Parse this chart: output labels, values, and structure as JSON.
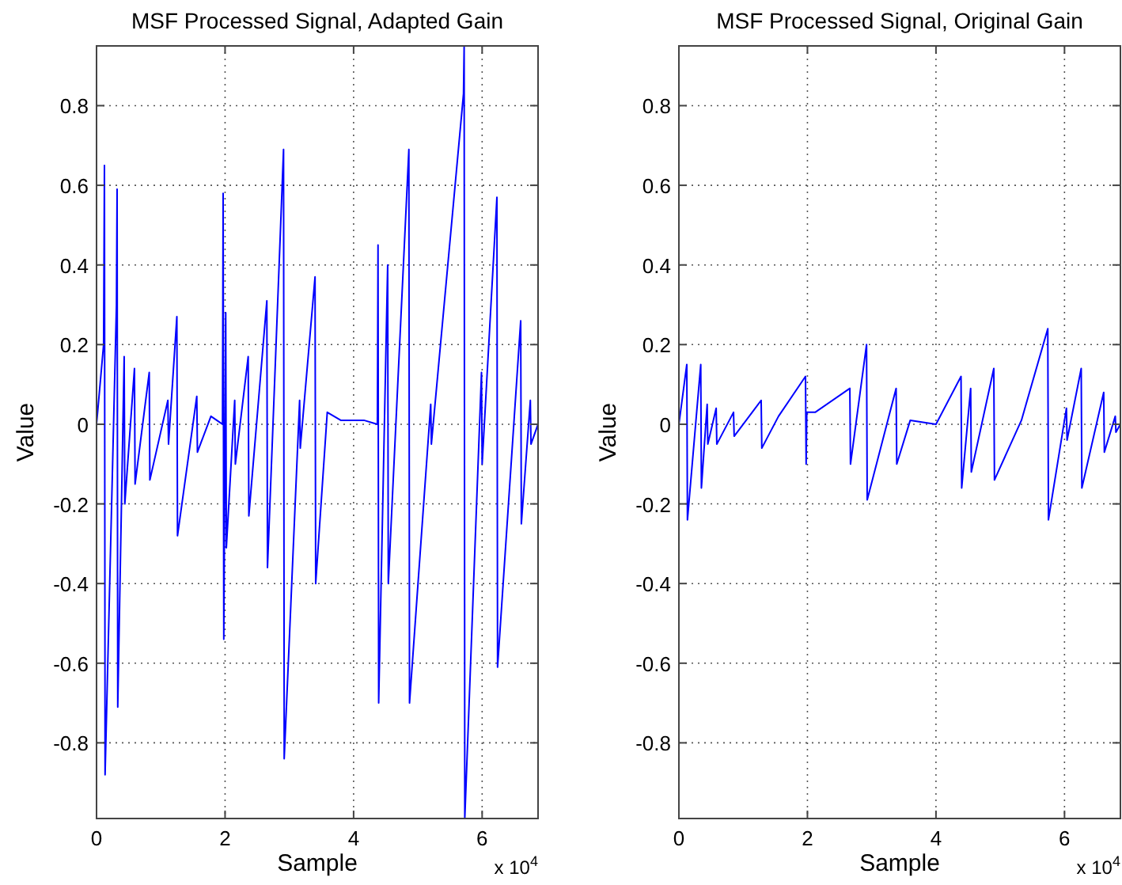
{
  "chart_data": [
    {
      "type": "line",
      "title": "MSF Processed Signal, Adapted Gain",
      "xlabel": "Sample",
      "ylabel": "Value",
      "annotations": [
        "x 10$^{4}$"
      ],
      "xlim": [
        0,
        6.87
      ],
      "ylim": [
        -0.99,
        0.95
      ],
      "xticks": [
        0,
        2,
        4,
        6
      ],
      "yticks": [
        -0.8,
        -0.6,
        -0.4,
        -0.2,
        0,
        0.2,
        0.4,
        0.6,
        0.8
      ],
      "grid": true,
      "marker": "none",
      "line_style": "solid",
      "series": [
        {
          "color": "#0000ff",
          "x": [
            0,
            0.11,
            0.123,
            0.133,
            0.31,
            0.32,
            0.33,
            0.43,
            0.44,
            0.59,
            0.6,
            0.82,
            0.83,
            1.11,
            1.12,
            1.25,
            1.26,
            1.56,
            1.57,
            1.78,
            1.96,
            1.97,
            1.98,
            2.01,
            2.02,
            2.15,
            2.16,
            2.36,
            2.37,
            2.65,
            2.66,
            2.91,
            2.92,
            3.16,
            3.17,
            3.4,
            3.41,
            3.59,
            3.8,
            4.16,
            4.37,
            4.38,
            4.39,
            4.53,
            4.54,
            4.86,
            4.87,
            5.2,
            5.21,
            5.71,
            5.72,
            5.73,
            5.99,
            6,
            6.23,
            6.24,
            6.6,
            6.61,
            6.75,
            6.76,
            6.87
          ],
          "values": [
            0,
            0.2,
            0.65,
            -0.88,
            0.3,
            0.59,
            -0.71,
            0.17,
            -0.2,
            0.14,
            -0.15,
            0.13,
            -0.14,
            0.06,
            -0.05,
            0.27,
            -0.28,
            0.07,
            -0.07,
            0.02,
            0,
            0.58,
            -0.54,
            0.28,
            -0.31,
            0.06,
            -0.1,
            0.17,
            -0.23,
            0.31,
            -0.36,
            0.69,
            -0.84,
            0.06,
            -0.06,
            0.37,
            -0.4,
            0.03,
            0.01,
            0.01,
            0,
            0.45,
            -0.7,
            0.4,
            -0.4,
            0.69,
            -0.7,
            0.05,
            -0.05,
            0.83,
            0.95,
            -0.99,
            0.13,
            -0.1,
            0.57,
            -0.61,
            0.26,
            -0.25,
            0.06,
            -0.05,
            0
          ]
        }
      ]
    },
    {
      "type": "line",
      "title": "MSF Processed Signal, Original Gain",
      "xlabel": "Sample",
      "ylabel": "Value",
      "annotations": [
        "x 10$^{4}$"
      ],
      "xlim": [
        0,
        6.87
      ],
      "ylim": [
        -0.99,
        0.95
      ],
      "xticks": [
        0,
        2,
        4,
        6
      ],
      "yticks": [
        -0.8,
        -0.6,
        -0.4,
        -0.2,
        0,
        0.2,
        0.4,
        0.6,
        0.8
      ],
      "grid": true,
      "marker": "none",
      "line_style": "solid",
      "series": [
        {
          "color": "#0000ff",
          "x": [
            0,
            0.123,
            0.133,
            0.34,
            0.35,
            0.44,
            0.45,
            0.58,
            0.59,
            0.85,
            0.86,
            1.28,
            1.29,
            1.55,
            1.97,
            1.98,
            1.99,
            2.12,
            2.66,
            2.67,
            2.92,
            2.93,
            3.38,
            3.39,
            3.6,
            4,
            4.39,
            4.4,
            4.54,
            4.55,
            4.9,
            4.91,
            5.33,
            5.74,
            5.75,
            6.03,
            6.04,
            6.26,
            6.27,
            6.61,
            6.62,
            6.79,
            6.8,
            6.87
          ],
          "values": [
            0,
            0.15,
            -0.24,
            0.15,
            -0.16,
            0.05,
            -0.05,
            0.04,
            -0.05,
            0.03,
            -0.03,
            0.06,
            -0.06,
            0.02,
            0.12,
            -0.1,
            0.03,
            0.03,
            0.09,
            -0.1,
            0.2,
            -0.19,
            0.09,
            -0.1,
            0.01,
            0,
            0.12,
            -0.16,
            0.09,
            -0.12,
            0.14,
            -0.14,
            0.01,
            0.24,
            -0.24,
            0.04,
            -0.04,
            0.14,
            -0.16,
            0.08,
            -0.07,
            0.02,
            -0.02,
            0
          ]
        }
      ]
    }
  ]
}
